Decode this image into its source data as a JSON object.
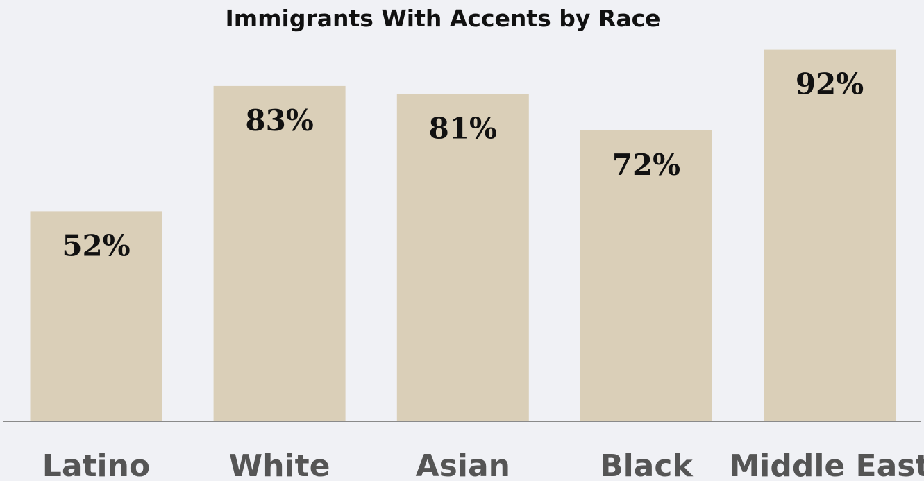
{
  "chart_data": {
    "type": "bar",
    "title": "Immigrants With Accents by Race",
    "categories": [
      "Latino",
      "White",
      "Asian",
      "Black",
      "Middle East"
    ],
    "values": [
      52,
      83,
      81,
      72,
      92
    ],
    "value_labels": [
      "52%",
      "83%",
      "81%",
      "72%",
      "92%"
    ],
    "xlabel": "",
    "ylabel": "",
    "ylim": [
      0,
      100
    ],
    "grid": false,
    "legend": "none",
    "colors": {
      "bar": "#dacfb8",
      "background": "#f0f1f5",
      "baseline": "#8a8a8a",
      "title": "#111111",
      "value_label": "#111111",
      "tick_label": "#555555"
    }
  }
}
